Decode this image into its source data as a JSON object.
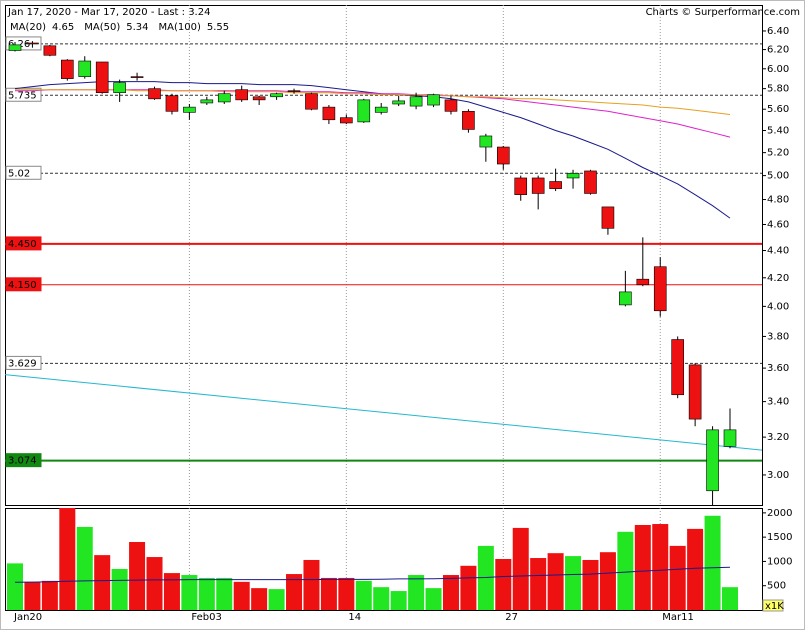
{
  "chart_data": {
    "type": "candlestick",
    "title": "Jan 17, 2020 - Mar 17, 2020 - Last : 3.24",
    "credit": "Charts © Surperformance.com",
    "categories": [
      "Jan20",
      null,
      null,
      null,
      null,
      null,
      null,
      null,
      null,
      null,
      "Feb03",
      null,
      null,
      null,
      null,
      null,
      null,
      null,
      null,
      "14",
      null,
      null,
      null,
      null,
      null,
      null,
      null,
      null,
      "27",
      null,
      null,
      null,
      null,
      null,
      null,
      null,
      null,
      "Mar11",
      null,
      null,
      null,
      null
    ],
    "open": [
      6.19,
      6.27,
      6.24,
      6.09,
      5.92,
      6.07,
      5.76,
      5.92,
      5.8,
      5.73,
      5.57,
      5.66,
      5.67,
      5.79,
      5.72,
      5.72,
      5.78,
      5.75,
      5.62,
      5.52,
      5.48,
      5.57,
      5.65,
      5.63,
      5.64,
      5.69,
      5.58,
      5.25,
      5.25,
      4.98,
      4.98,
      4.95,
      4.98,
      5.04,
      4.74,
      4.01,
      4.19,
      4.28,
      3.78,
      3.62,
      2.92,
      3.15
    ],
    "high": [
      6.28,
      6.29,
      6.25,
      6.1,
      6.13,
      6.07,
      5.89,
      5.96,
      5.82,
      5.75,
      5.65,
      5.72,
      5.78,
      5.83,
      5.73,
      5.76,
      5.8,
      5.76,
      5.64,
      5.55,
      5.7,
      5.66,
      5.73,
      5.76,
      5.75,
      5.73,
      5.6,
      5.37,
      5.26,
      5.0,
      5.0,
      5.06,
      5.05,
      5.05,
      4.74,
      4.25,
      4.5,
      4.35,
      3.8,
      3.63,
      3.26,
      3.36
    ],
    "low": [
      6.18,
      6.22,
      6.13,
      5.88,
      5.9,
      5.75,
      5.67,
      5.88,
      5.69,
      5.55,
      5.5,
      5.64,
      5.65,
      5.67,
      5.64,
      5.69,
      5.75,
      5.59,
      5.46,
      5.46,
      5.47,
      5.55,
      5.63,
      5.6,
      5.62,
      5.55,
      5.38,
      5.12,
      5.05,
      4.79,
      4.72,
      4.87,
      4.89,
      4.84,
      4.52,
      4.0,
      4.14,
      3.93,
      3.42,
      3.26,
      2.85,
      3.14
    ],
    "close": [
      6.25,
      6.26,
      6.14,
      5.9,
      6.08,
      5.76,
      5.86,
      5.91,
      5.7,
      5.58,
      5.62,
      5.69,
      5.75,
      5.69,
      5.69,
      5.75,
      5.77,
      5.6,
      5.5,
      5.47,
      5.69,
      5.62,
      5.68,
      5.72,
      5.74,
      5.58,
      5.41,
      5.35,
      5.1,
      4.84,
      4.85,
      4.89,
      5.02,
      4.85,
      4.57,
      4.1,
      4.15,
      3.97,
      3.44,
      3.3,
      3.24,
      3.24
    ],
    "up_color": "#22e622",
    "down_color": "#ee1111",
    "series": [
      {
        "name": "MA(20)",
        "color": "#1a1a8c",
        "values": [
          5.8,
          5.82,
          5.84,
          5.85,
          5.86,
          5.87,
          5.87,
          5.87,
          5.87,
          5.86,
          5.86,
          5.85,
          5.85,
          5.85,
          5.84,
          5.84,
          5.84,
          5.83,
          5.81,
          5.79,
          5.77,
          5.75,
          5.74,
          5.73,
          5.72,
          5.7,
          5.67,
          5.62,
          5.57,
          5.52,
          5.46,
          5.4,
          5.35,
          5.29,
          5.23,
          5.15,
          5.07,
          5.0,
          4.93,
          4.84,
          4.75,
          4.65
        ]
      },
      {
        "name": "MA(50)",
        "color": "#dd22cc",
        "values": [
          5.78,
          5.78,
          5.79,
          5.79,
          5.79,
          5.79,
          5.79,
          5.79,
          5.79,
          5.78,
          5.78,
          5.78,
          5.78,
          5.78,
          5.78,
          5.78,
          5.77,
          5.77,
          5.77,
          5.76,
          5.76,
          5.75,
          5.75,
          5.74,
          5.74,
          5.73,
          5.72,
          5.71,
          5.7,
          5.68,
          5.66,
          5.64,
          5.62,
          5.6,
          5.58,
          5.55,
          5.52,
          5.49,
          5.46,
          5.42,
          5.38,
          5.34
        ]
      },
      {
        "name": "MA(100)",
        "color": "#e8a020",
        "values": [
          5.79,
          5.79,
          5.79,
          5.79,
          5.79,
          5.79,
          5.79,
          5.78,
          5.78,
          5.78,
          5.78,
          5.78,
          5.77,
          5.77,
          5.77,
          5.77,
          5.76,
          5.76,
          5.76,
          5.75,
          5.75,
          5.74,
          5.74,
          5.74,
          5.73,
          5.73,
          5.72,
          5.72,
          5.71,
          5.7,
          5.7,
          5.69,
          5.68,
          5.67,
          5.66,
          5.65,
          5.64,
          5.62,
          5.61,
          5.59,
          5.57,
          5.55
        ]
      }
    ],
    "log_scale": true,
    "ylim": [
      2.85,
      6.69
    ],
    "yticks": [
      {
        "value": 3.0,
        "label": "3.00"
      },
      {
        "value": 3.2,
        "label": "3.20"
      },
      {
        "value": 3.4,
        "label": "3.40"
      },
      {
        "value": 3.6,
        "label": "3.60"
      },
      {
        "value": 3.8,
        "label": "3.80"
      },
      {
        "value": 4.0,
        "label": "4.00"
      },
      {
        "value": 4.2,
        "label": "4.20"
      },
      {
        "value": 4.4,
        "label": "4.40"
      },
      {
        "value": 4.6,
        "label": "4.60"
      },
      {
        "value": 4.8,
        "label": "4.80"
      },
      {
        "value": 5.0,
        "label": "5.00"
      },
      {
        "value": 5.2,
        "label": "5.20"
      },
      {
        "value": 5.4,
        "label": "5.40"
      },
      {
        "value": 5.6,
        "label": "5.60"
      },
      {
        "value": 5.8,
        "label": "5.80"
      },
      {
        "value": 6.0,
        "label": "6.00"
      },
      {
        "value": 6.2,
        "label": "6.20"
      },
      {
        "value": 6.4,
        "label": "6.40"
      }
    ],
    "levels": [
      {
        "value": 6.26,
        "label": "6.26",
        "color": "#333333",
        "style": "dashed"
      },
      {
        "value": 5.735,
        "label": "5.735",
        "color": "#333333",
        "style": "dashed"
      },
      {
        "value": 5.02,
        "label": "5.02",
        "color": "#333333",
        "style": "dashed"
      },
      {
        "value": 4.45,
        "label": "4.450",
        "color": "#ee1111",
        "style": "thick"
      },
      {
        "value": 4.15,
        "label": "4.150",
        "color": "#ee1111",
        "style": "solid"
      },
      {
        "value": 3.629,
        "label": "3.629",
        "color": "#333333",
        "style": "dashed"
      },
      {
        "value": 3.074,
        "label": "3.074",
        "color": "#118811",
        "style": "thick"
      }
    ],
    "trendline": {
      "color": "#22b8d0",
      "values": [
        3.56,
        3.13
      ]
    },
    "volume": {
      "values": [
        960,
        580,
        600,
        2100,
        1710,
        1130,
        845,
        1400,
        1090,
        760,
        720,
        660,
        660,
        580,
        450,
        430,
        740,
        1030,
        660,
        660,
        600,
        470,
        390,
        720,
        450,
        720,
        910,
        1320,
        1050,
        1690,
        1070,
        1170,
        1110,
        1030,
        1190,
        1610,
        1750,
        1770,
        1320,
        1670,
        1940,
        470
      ],
      "ylim": [
        0,
        2100
      ],
      "yticks": [
        500,
        1000,
        1500,
        2000
      ],
      "unit": "x1K",
      "ma": {
        "color": "#1a1a8c",
        "values": [
          570,
          575,
          580,
          590,
          600,
          605,
          610,
          615,
          620,
          620,
          625,
          625,
          625,
          625,
          625,
          625,
          625,
          625,
          630,
          630,
          630,
          635,
          640,
          640,
          645,
          650,
          660,
          670,
          690,
          700,
          710,
          720,
          730,
          740,
          760,
          780,
          800,
          820,
          840,
          860,
          870,
          880
        ]
      }
    }
  }
}
